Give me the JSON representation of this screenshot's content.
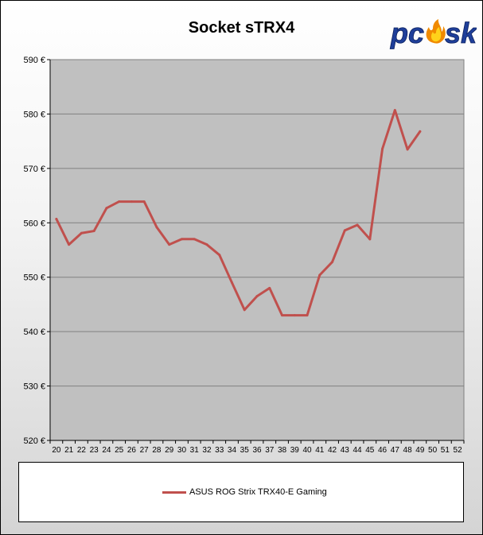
{
  "chart_data": {
    "type": "line",
    "title": "Socket sTRX4",
    "xlabel": "",
    "ylabel": "",
    "categories": [
      "20",
      "21",
      "22",
      "23",
      "24",
      "25",
      "26",
      "27",
      "28",
      "29",
      "30",
      "31",
      "32",
      "33",
      "34",
      "35",
      "36",
      "37",
      "38",
      "39",
      "40",
      "41",
      "42",
      "43",
      "44",
      "45",
      "46",
      "47",
      "48",
      "49",
      "50",
      "51",
      "52"
    ],
    "ylim": [
      520,
      590
    ],
    "ytick_step": 10,
    "ytick_labels": [
      "520 €",
      "530 €",
      "540 €",
      "550 €",
      "560 €",
      "570 €",
      "580 €",
      "590 €"
    ],
    "grid": true,
    "legend_position": "bottom",
    "series": [
      {
        "name": "ASUS ROG Strix TRX40-E Gaming",
        "color": "#c0504d",
        "values": [
          560.7,
          556.0,
          558.1,
          558.5,
          562.7,
          563.9,
          563.9,
          563.9,
          559.2,
          556.0,
          557.0,
          557.0,
          556.0,
          554.1,
          549.0,
          544.0,
          546.5,
          548.0,
          543.0,
          543.0,
          543.0,
          550.4,
          552.8,
          558.6,
          559.6,
          557.0,
          573.6,
          580.7,
          573.5,
          576.8,
          null,
          null,
          null
        ]
      }
    ]
  },
  "colors": {
    "plot_background": "#c0c0c0",
    "gridline": "#808080",
    "series": "#c0504d"
  },
  "logo": {
    "text": "pcosk",
    "icon": "flame-icon"
  }
}
